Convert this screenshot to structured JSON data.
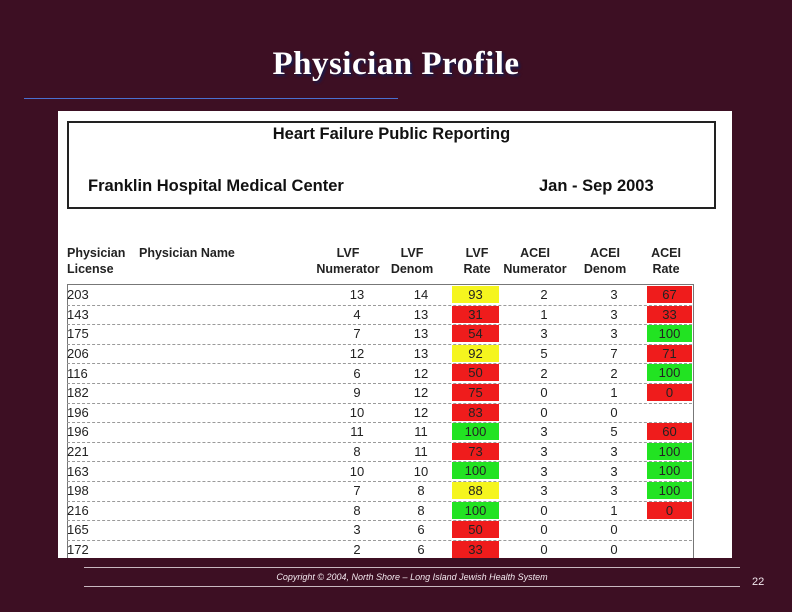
{
  "slide": {
    "title": "Physician Profile",
    "footer": "Copyright © 2004, North Shore – Long Island Jewish Health System",
    "page_number": "22"
  },
  "report": {
    "title": "Heart Failure Public Reporting",
    "hospital": "Franklin Hospital Medical Center",
    "period": "Jan - Sep 2003"
  },
  "columns": {
    "license_l1": "Physician",
    "license_l2": "License",
    "name": "Physician Name",
    "lvf_num_l1": "LVF",
    "lvf_num_l2": "Numerator",
    "lvf_den_l1": "LVF",
    "lvf_den_l2": "Denom",
    "lvf_rate_l1": "LVF",
    "lvf_rate_l2": "Rate",
    "acei_num_l1": "ACEI",
    "acei_num_l2": "Numerator",
    "acei_den_l1": "ACEI",
    "acei_den_l2": "Denom",
    "acei_rate_l1": "ACEI",
    "acei_rate_l2": "Rate"
  },
  "colors": {
    "green": "#22e322",
    "yellow": "#f5f51e",
    "red": "#ef1c1c"
  },
  "rows": [
    {
      "license": "203",
      "lvf_num": "13",
      "lvf_den": "14",
      "lvf_rate": "93",
      "lvf_color": "yellow",
      "acei_num": "2",
      "acei_den": "3",
      "acei_rate": "67",
      "acei_color": "red"
    },
    {
      "license": "143",
      "lvf_num": "4",
      "lvf_den": "13",
      "lvf_rate": "31",
      "lvf_color": "red",
      "acei_num": "1",
      "acei_den": "3",
      "acei_rate": "33",
      "acei_color": "red"
    },
    {
      "license": "175",
      "lvf_num": "7",
      "lvf_den": "13",
      "lvf_rate": "54",
      "lvf_color": "red",
      "acei_num": "3",
      "acei_den": "3",
      "acei_rate": "100",
      "acei_color": "green"
    },
    {
      "license": "206",
      "lvf_num": "12",
      "lvf_den": "13",
      "lvf_rate": "92",
      "lvf_color": "yellow",
      "acei_num": "5",
      "acei_den": "7",
      "acei_rate": "71",
      "acei_color": "red"
    },
    {
      "license": "116",
      "lvf_num": "6",
      "lvf_den": "12",
      "lvf_rate": "50",
      "lvf_color": "red",
      "acei_num": "2",
      "acei_den": "2",
      "acei_rate": "100",
      "acei_color": "green"
    },
    {
      "license": "182",
      "lvf_num": "9",
      "lvf_den": "12",
      "lvf_rate": "75",
      "lvf_color": "red",
      "acei_num": "0",
      "acei_den": "1",
      "acei_rate": "0",
      "acei_color": "red"
    },
    {
      "license": "196",
      "lvf_num": "10",
      "lvf_den": "12",
      "lvf_rate": "83",
      "lvf_color": "red",
      "acei_num": "0",
      "acei_den": "0",
      "acei_rate": "",
      "acei_color": ""
    },
    {
      "license": "196",
      "lvf_num": "11",
      "lvf_den": "11",
      "lvf_rate": "100",
      "lvf_color": "green",
      "acei_num": "3",
      "acei_den": "5",
      "acei_rate": "60",
      "acei_color": "red"
    },
    {
      "license": "221",
      "lvf_num": "8",
      "lvf_den": "11",
      "lvf_rate": "73",
      "lvf_color": "red",
      "acei_num": "3",
      "acei_den": "3",
      "acei_rate": "100",
      "acei_color": "green"
    },
    {
      "license": "163",
      "lvf_num": "10",
      "lvf_den": "10",
      "lvf_rate": "100",
      "lvf_color": "green",
      "acei_num": "3",
      "acei_den": "3",
      "acei_rate": "100",
      "acei_color": "green"
    },
    {
      "license": "198",
      "lvf_num": "7",
      "lvf_den": "8",
      "lvf_rate": "88",
      "lvf_color": "yellow",
      "acei_num": "3",
      "acei_den": "3",
      "acei_rate": "100",
      "acei_color": "green"
    },
    {
      "license": "216",
      "lvf_num": "8",
      "lvf_den": "8",
      "lvf_rate": "100",
      "lvf_color": "green",
      "acei_num": "0",
      "acei_den": "1",
      "acei_rate": "0",
      "acei_color": "red"
    },
    {
      "license": "165",
      "lvf_num": "3",
      "lvf_den": "6",
      "lvf_rate": "50",
      "lvf_color": "red",
      "acei_num": "0",
      "acei_den": "0",
      "acei_rate": "",
      "acei_color": ""
    },
    {
      "license": "172",
      "lvf_num": "2",
      "lvf_den": "6",
      "lvf_rate": "33",
      "lvf_color": "red",
      "acei_num": "0",
      "acei_den": "0",
      "acei_rate": "",
      "acei_color": ""
    }
  ]
}
